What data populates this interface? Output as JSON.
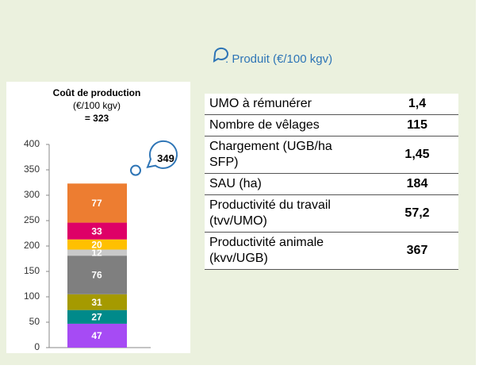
{
  "chart_data": {
    "type": "stacked_bar",
    "title": "Coût de production",
    "subtitle": "(€/100 kgv)",
    "total_label": "= 323",
    "values": [
      47,
      27,
      31,
      76,
      12,
      20,
      33,
      77
    ],
    "colors": [
      "#a64bf4",
      "#008a8a",
      "#a59a00",
      "#7f7f7f",
      "#c9c9c9",
      "#ffc000",
      "#de0067",
      "#ed7d31"
    ],
    "ylim": [
      0,
      400
    ],
    "yticks": [
      0,
      50,
      100,
      150,
      200,
      250,
      300,
      350,
      400
    ],
    "marker": 349,
    "legend": ": Produit (€/100 kgv)"
  },
  "table": {
    "rows": [
      [
        "UMO à rémunérer",
        "1,4"
      ],
      [
        "Nombre de vêlages",
        "115"
      ],
      [
        "Chargement (UGB/ha SFP)",
        "1,45"
      ],
      [
        "SAU (ha)",
        "184"
      ],
      [
        "Productivité du travail (tvv/UMO)",
        "57,2"
      ],
      [
        "Productivité animale (kvv/UGB)",
        "367"
      ]
    ]
  }
}
